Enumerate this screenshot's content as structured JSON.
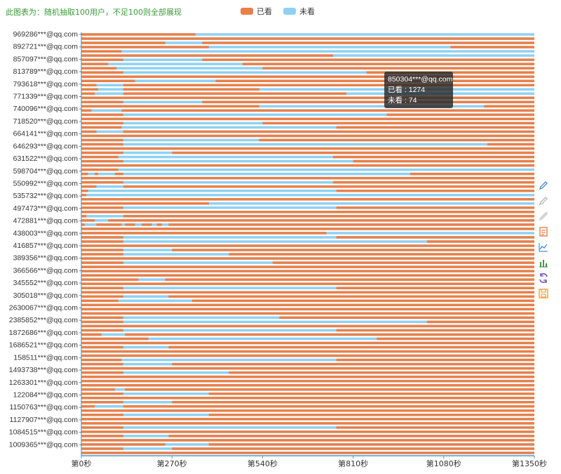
{
  "subtitle": "此图表为：随机抽取100用户，不足100则全部展现",
  "legend": {
    "watched_label": "已看",
    "unwatched_label": "未看",
    "watched_color": "#e8804a",
    "unwatched_color": "#8fd1f2"
  },
  "tooltip": {
    "user": "850304***@qq.com",
    "watched_line": "已看 : 1274",
    "unwatched_line": "未看 : 74"
  },
  "toolbox": {
    "icons": [
      "pencil-icon",
      "pencil-faded-icon",
      "eraser-icon",
      "data-view-icon",
      "line-chart-icon",
      "bar-chart-icon",
      "restore-icon",
      "save-image-icon"
    ]
  },
  "chart_data": {
    "type": "bar",
    "orientation": "horizontal-stacked-timeline",
    "series": [
      {
        "name": "已看",
        "color": "#e8804a"
      },
      {
        "name": "未看",
        "color": "#8fd1f2"
      }
    ],
    "x_ticks": [
      "第0秒",
      "第270秒",
      "第540秒",
      "第810秒",
      "第1080秒",
      "第1350秒"
    ],
    "xlim": [
      0,
      1350
    ],
    "y_labels": [
      "969286***@qq.com",
      "892721***@qq.com",
      "857097***@qq.com",
      "813789***@qq.com",
      "793618***@qq.com",
      "771339***@qq.com",
      "740096***@qq.com",
      "718520***@qq.com",
      "664141***@qq.com",
      "646293***@qq.com",
      "631522***@qq.com",
      "598704***@qq.com",
      "550992***@qq.com",
      "535732***@qq.com",
      "497473***@qq.com",
      "472881***@qq.com",
      "438003***@qq.com",
      "416857***@qq.com",
      "389356***@qq.com",
      "366566***@qq.com",
      "345552***@qq.com",
      "305018***@qq.com",
      "2630067***@qq.com",
      "2385852***@qq.com",
      "1872686***@qq.com",
      "1686521***@qq.com",
      "158511***@qq.com",
      "1493738***@qq.com",
      "1263301***@qq.com",
      "122084***@qq.com",
      "1150763***@qq.com",
      "1127907***@qq.com",
      "1084515***@qq.com",
      "1009365***@qq.com"
    ],
    "rows_per_label": 3,
    "row_count": 100,
    "rows_watched_segments": [
      [
        [
          0,
          340
        ]
      ],
      [
        [
          0,
          1350
        ]
      ],
      [
        [
          0,
          250
        ],
        [
          360,
          1350
        ]
      ],
      [
        [
          0,
          380
        ],
        [
          1100,
          1350
        ]
      ],
      [
        [
          0,
          120
        ]
      ],
      [
        [
          0,
          750
        ]
      ],
      [
        [
          0,
          125
        ],
        [
          360,
          1350
        ]
      ],
      [
        [
          0,
          80
        ],
        [
          480,
          1350
        ]
      ],
      [
        [
          0,
          105
        ],
        [
          540,
          1350
        ]
      ],
      [
        [
          0,
          125
        ],
        [
          850,
          1350
        ]
      ],
      [
        [
          0,
          1350
        ]
      ],
      [
        [
          0,
          160
        ],
        [
          400,
          1350
        ]
      ],
      [
        [
          0,
          45
        ],
        [
          125,
          1350
        ]
      ],
      [
        [
          0,
          50
        ],
        [
          125,
          530
        ]
      ],
      [
        [
          0,
          40
        ],
        [
          125,
          790
        ]
      ],
      [
        [
          0,
          1350
        ]
      ],
      [
        [
          0,
          125
        ],
        [
          360,
          1350
        ]
      ],
      [
        [
          0,
          530
        ],
        [
          1200,
          1350
        ]
      ],
      [
        [
          0,
          30
        ],
        [
          120,
          1350
        ]
      ],
      [
        [
          0,
          125
        ],
        [
          910,
          1350
        ]
      ],
      [
        [
          0,
          1350
        ]
      ],
      [
        [
          0,
          125
        ],
        [
          540,
          1350
        ]
      ],
      [
        [
          0,
          120
        ],
        [
          760,
          1350
        ]
      ],
      [
        [
          0,
          45
        ],
        [
          125,
          1350
        ]
      ],
      [
        [
          0,
          1350
        ]
      ],
      [
        [
          0,
          125
        ],
        [
          530,
          1350
        ]
      ],
      [
        [
          0,
          125
        ],
        [
          1210,
          1350
        ]
      ],
      [
        [
          0,
          1350
        ]
      ],
      [
        [
          0,
          125
        ],
        [
          270,
          1350
        ]
      ],
      [
        [
          0,
          110
        ],
        [
          750,
          1350
        ]
      ],
      [
        [
          0,
          125
        ],
        [
          810,
          1350
        ]
      ],
      [
        [
          0,
          1350
        ]
      ],
      [
        [
          0,
          110
        ],
        [
          1350,
          1350
        ]
      ],
      [
        [
          0,
          20
        ],
        [
          40,
          50
        ],
        [
          100,
          125
        ],
        [
          980,
          1350
        ]
      ],
      [
        [
          0,
          1350
        ]
      ],
      [
        [
          0,
          125
        ],
        [
          750,
          1350
        ]
      ],
      [
        [
          0,
          45
        ],
        [
          125,
          1350
        ]
      ],
      [
        [
          0,
          20
        ],
        [
          760,
          1350
        ]
      ],
      [
        [
          0,
          15
        ]
      ],
      [
        [
          0,
          1350
        ]
      ],
      [
        [
          0,
          380
        ],
        [
          1350,
          1350
        ]
      ],
      [
        [
          0,
          125
        ],
        [
          760,
          1350
        ]
      ],
      [
        [
          0,
          1350
        ]
      ],
      [
        [
          0,
          15
        ],
        [
          125,
          1350
        ]
      ],
      [
        [
          0,
          40
        ],
        [
          80,
          1350
        ]
      ],
      [
        [
          0,
          10
        ],
        [
          45,
          120
        ],
        [
          130,
          160
        ],
        [
          180,
          210
        ],
        [
          225,
          240
        ],
        [
          260,
          1350
        ]
      ],
      [
        [
          0,
          1350
        ]
      ],
      [
        [
          0,
          730
        ]
      ],
      [
        [
          0,
          125
        ],
        [
          760,
          1350
        ]
      ],
      [
        [
          0,
          125
        ],
        [
          1030,
          1350
        ]
      ],
      [
        [
          0,
          1350
        ]
      ],
      [
        [
          0,
          125
        ],
        [
          270,
          1350
        ]
      ],
      [
        [
          0,
          125
        ],
        [
          440,
          1350
        ]
      ],
      [
        [
          0,
          1350
        ]
      ],
      [
        [
          0,
          125
        ],
        [
          570,
          1350
        ]
      ],
      [
        [
          0,
          1350
        ]
      ],
      [
        [
          0,
          1350
        ]
      ],
      [
        [
          0,
          1350
        ]
      ],
      [
        [
          0,
          170
        ],
        [
          250,
          1350
        ]
      ],
      [
        [
          0,
          1350
        ]
      ],
      [
        [
          0,
          125
        ],
        [
          760,
          1350
        ]
      ],
      [
        [
          0,
          1350
        ]
      ],
      [
        [
          0,
          125
        ],
        [
          260,
          1350
        ]
      ],
      [
        [
          0,
          110
        ],
        [
          330,
          1350
        ]
      ],
      [
        [
          0,
          1350
        ]
      ],
      [
        [
          0,
          1350
        ]
      ],
      [
        [
          0,
          1350
        ]
      ],
      [
        [
          0,
          125
        ],
        [
          590,
          1350
        ]
      ],
      [
        [
          0,
          125
        ],
        [
          1030,
          1350
        ]
      ],
      [
        [
          0,
          1350
        ]
      ],
      [
        [
          0,
          125
        ],
        [
          760,
          1350
        ]
      ],
      [
        [
          0,
          60
        ],
        [
          130,
          1350
        ]
      ],
      [
        [
          0,
          200
        ],
        [
          880,
          1350
        ]
      ],
      [
        [
          0,
          1350
        ]
      ],
      [
        [
          0,
          125
        ],
        [
          260,
          1350
        ]
      ],
      [
        [
          0,
          1350
        ]
      ],
      [
        [
          0,
          1350
        ]
      ],
      [
        [
          0,
          120
        ],
        [
          760,
          1350
        ]
      ],
      [
        [
          0,
          125
        ],
        [
          270,
          1350
        ]
      ],
      [
        [
          0,
          1350
        ]
      ],
      [
        [
          0,
          125
        ],
        [
          440,
          1350
        ]
      ],
      [
        [
          0,
          1350
        ]
      ],
      [
        [
          0,
          1350
        ]
      ],
      [
        [
          0,
          1350
        ]
      ],
      [
        [
          0,
          100
        ],
        [
          130,
          1350
        ]
      ],
      [
        [
          0,
          125
        ],
        [
          380,
          1350
        ]
      ],
      [
        [
          0,
          1350
        ]
      ],
      [
        [
          0,
          125
        ],
        [
          270,
          1350
        ]
      ],
      [
        [
          0,
          40
        ],
        [
          125,
          1350
        ]
      ],
      [
        [
          0,
          1350
        ]
      ],
      [
        [
          0,
          125
        ],
        [
          380,
          1350
        ]
      ],
      [
        [
          0,
          1350
        ]
      ],
      [
        [
          0,
          1350
        ]
      ],
      [
        [
          0,
          125
        ],
        [
          760,
          1350
        ]
      ],
      [
        [
          0,
          1350
        ]
      ],
      [
        [
          0,
          125
        ],
        [
          260,
          1350
        ]
      ],
      [
        [
          0,
          1350
        ]
      ],
      [
        [
          0,
          250
        ],
        [
          380,
          1350
        ]
      ],
      [
        [
          0,
          125
        ],
        [
          270,
          1350
        ]
      ],
      [
        [
          0,
          1350
        ]
      ]
    ]
  }
}
